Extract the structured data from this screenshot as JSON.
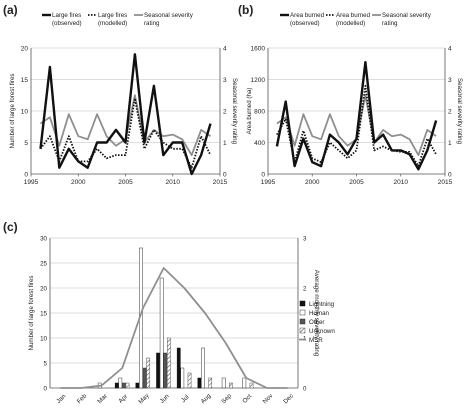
{
  "colors": {
    "observed": "#111111",
    "modelled": "#111111",
    "severity": "#8f8f8f",
    "axis": "#555555",
    "grid": "#bdbdbd"
  },
  "panels": [
    {
      "label": "(a)"
    },
    {
      "label": "(b)"
    },
    {
      "label": "(c)"
    }
  ],
  "chart_data": [
    {
      "type": "line",
      "panel": "(a)",
      "x": [
        1996,
        1997,
        1998,
        1999,
        2000,
        2001,
        2002,
        2003,
        2004,
        2005,
        2006,
        2007,
        2008,
        2009,
        2010,
        2011,
        2012,
        2013,
        2014
      ],
      "series": [
        {
          "name": "Large fires (observed)",
          "axis": "left",
          "style": "solid-thick",
          "values": [
            4,
            17,
            1,
            4,
            2,
            1,
            5,
            5,
            7,
            5,
            19,
            5,
            14,
            3,
            5,
            5,
            0,
            3,
            8
          ]
        },
        {
          "name": "Large fires (modelled)",
          "axis": "left",
          "style": "dotted",
          "values": [
            4,
            6,
            2,
            6,
            2,
            2,
            4,
            2.5,
            3,
            3,
            12,
            4,
            7,
            5,
            4,
            4,
            1,
            6,
            3
          ]
        },
        {
          "name": "Seasonal severity rating",
          "axis": "right",
          "style": "solid-grey",
          "values": [
            1.6,
            1.8,
            0.9,
            1.9,
            1.2,
            1.1,
            1.9,
            1.2,
            0.9,
            1.1,
            2.5,
            1.0,
            1.4,
            1.2,
            1.25,
            1.1,
            0.6,
            1.4,
            1.2
          ]
        }
      ],
      "legend_labels": [
        [
          "Large fires",
          "(observed)"
        ],
        [
          "Large fires",
          "(modelled)"
        ],
        [
          "Seasonal severity",
          "rating"
        ]
      ],
      "xlim": [
        1995,
        2015
      ],
      "xticks": [
        1995,
        2000,
        2005,
        2010,
        2015
      ],
      "ylabel": "Number of large forest fires",
      "ylim": [
        0,
        20
      ],
      "yticks": [
        0,
        5,
        10,
        15,
        20
      ],
      "y2label": "Seasonal severity rating",
      "y2lim": [
        0,
        4
      ],
      "y2ticks": [
        0,
        1,
        2,
        3,
        4
      ],
      "legend": "top",
      "grid": "horizontal"
    },
    {
      "type": "line",
      "panel": "(b)",
      "x": [
        1996,
        1997,
        1998,
        1999,
        2000,
        2001,
        2002,
        2003,
        2004,
        2005,
        2006,
        2007,
        2008,
        2009,
        2010,
        2011,
        2012,
        2013,
        2014
      ],
      "series": [
        {
          "name": "Area burned (observed)",
          "axis": "left",
          "style": "solid-thick",
          "values": [
            350,
            920,
            100,
            450,
            150,
            100,
            500,
            400,
            250,
            450,
            1420,
            400,
            500,
            300,
            300,
            250,
            60,
            300,
            680
          ]
        },
        {
          "name": "Area burned (modelled)",
          "axis": "left",
          "style": "dotted",
          "values": [
            500,
            700,
            150,
            550,
            200,
            150,
            400,
            300,
            200,
            300,
            1120,
            300,
            350,
            300,
            280,
            280,
            100,
            450,
            250
          ]
        },
        {
          "name": "Seasonal severity rating",
          "axis": "right",
          "style": "solid-grey",
          "values": [
            1.6,
            1.8,
            0.9,
            1.9,
            1.2,
            1.1,
            1.9,
            1.2,
            0.9,
            1.1,
            2.5,
            1.0,
            1.4,
            1.2,
            1.25,
            1.1,
            0.6,
            1.4,
            1.2
          ]
        }
      ],
      "legend_labels": [
        [
          "Area burned",
          "(observed)"
        ],
        [
          "Area burned",
          "(modelled)"
        ],
        [
          "Seasonal severity",
          "rating"
        ]
      ],
      "xlim": [
        1995,
        2015
      ],
      "xticks": [
        1995,
        2000,
        2005,
        2010,
        2015
      ],
      "ylabel": "Area burned (ha)",
      "ylim": [
        0,
        1600
      ],
      "yticks": [
        0,
        400,
        800,
        1200,
        1600
      ],
      "y2label": "Seasonal severity rating",
      "y2lim": [
        0,
        4
      ],
      "y2ticks": [
        0,
        1,
        2,
        3,
        4
      ],
      "legend": "top",
      "grid": "horizontal"
    },
    {
      "type": "bar",
      "panel": "(c)",
      "categories": [
        "Jan",
        "Feb",
        "Mar",
        "Apr",
        "May",
        "Jun",
        "Jul",
        "Aug",
        "Sep",
        "Oct",
        "Nov",
        "Dec"
      ],
      "series": [
        {
          "name": "Lightning",
          "pattern": "solid-black",
          "values": [
            0,
            0,
            0,
            1,
            1,
            7,
            8,
            2,
            0,
            0,
            0,
            0
          ]
        },
        {
          "name": "Human",
          "pattern": "white",
          "values": [
            0,
            0,
            1,
            2,
            28,
            22,
            4,
            8,
            2,
            2,
            0,
            0
          ]
        },
        {
          "name": "Other",
          "pattern": "dark-grey",
          "values": [
            0,
            0,
            0,
            1,
            4,
            7,
            0,
            0,
            0,
            0,
            0,
            0
          ]
        },
        {
          "name": "Unknown",
          "pattern": "hatched",
          "values": [
            0,
            0,
            0,
            1,
            6,
            10,
            3,
            2,
            1,
            1,
            0,
            0
          ]
        }
      ],
      "line": {
        "name": "MSR",
        "axis": "right",
        "values": [
          0,
          0,
          0.05,
          0.4,
          1.6,
          2.4,
          2.0,
          1.5,
          0.9,
          0.2,
          0,
          0
        ]
      },
      "ylabel": "Number of large forest fires",
      "ylim": [
        0,
        30
      ],
      "yticks": [
        0,
        5,
        10,
        15,
        20,
        25,
        30
      ],
      "y2label": "Average monthly severity rating",
      "y2lim": [
        0,
        3
      ],
      "y2ticks": [
        0,
        1,
        2,
        3
      ],
      "legend": "right",
      "grid": "horizontal"
    }
  ]
}
